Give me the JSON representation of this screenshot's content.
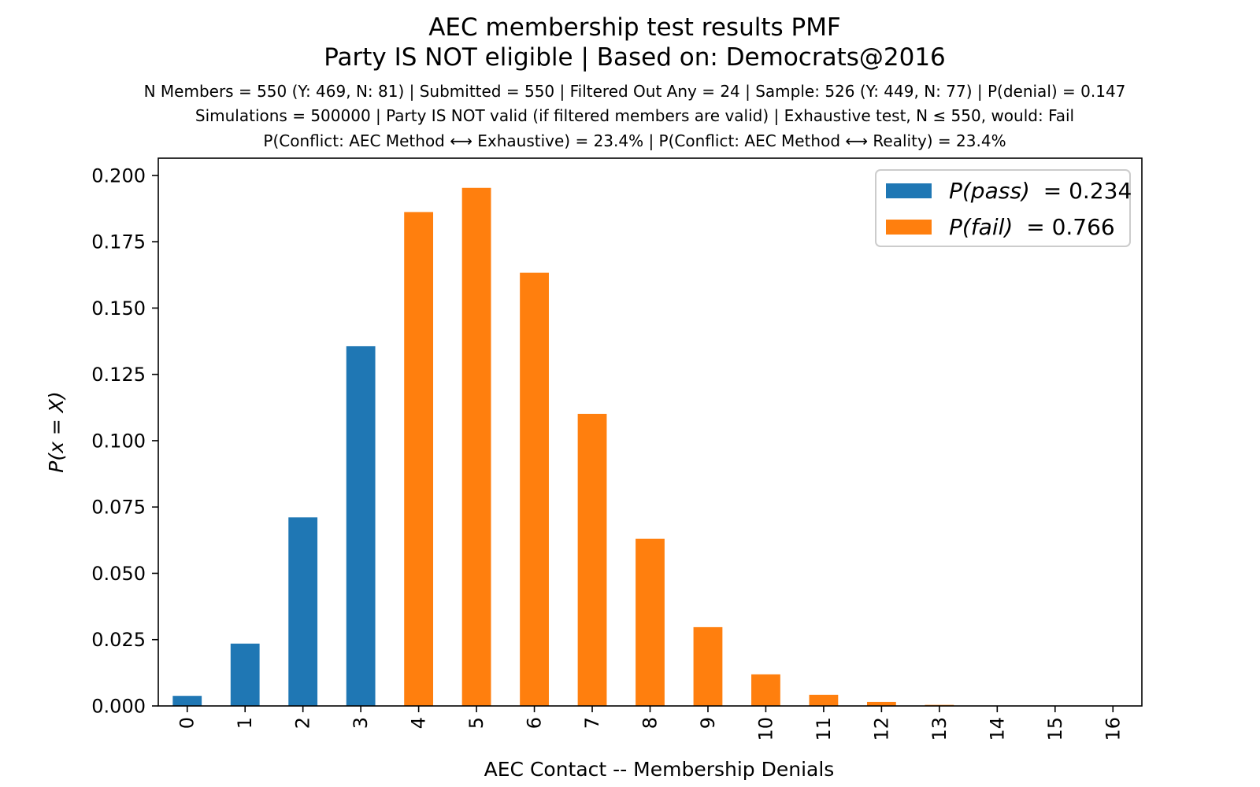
{
  "chart_data": {
    "type": "bar",
    "title": "AEC membership test results PMF",
    "subtitle": "Party IS NOT eligible | Based on: Democrats@2016",
    "info_lines": [
      "N Members = 550 (Y: 469, N: 81) | Submitted = 550 | Filtered Out Any = 24 | Sample: 526 (Y: 449, N: 77) | P(denial) = 0.147",
      "Simulations = 500000 | Party IS NOT valid (if filtered members are valid) | Exhaustive test, N ≤ 550, would: Fail",
      "P(Conflict: AEC Method ⟷ Exhaustive) = 23.4% | P(Conflict: AEC Method ⟷ Reality) = 23.4%"
    ],
    "xlabel": "AEC Contact -- Membership Denials",
    "ylabel": "P(x = X)",
    "ylim": [
      0,
      0.2
    ],
    "yticks": [
      "0.000",
      "0.025",
      "0.050",
      "0.075",
      "0.100",
      "0.125",
      "0.150",
      "0.175",
      "0.200"
    ],
    "categories": [
      "0",
      "1",
      "2",
      "3",
      "4",
      "5",
      "6",
      "7",
      "8",
      "9",
      "10",
      "11",
      "12",
      "13",
      "14",
      "15",
      "16"
    ],
    "series": [
      {
        "name": "P(pass) = 0.234",
        "label_prefix": "P(pass)",
        "label_value": "= 0.234",
        "color": "#1f77b4",
        "values": [
          0.0038,
          0.0235,
          0.0711,
          0.1356,
          0,
          0,
          0,
          0,
          0,
          0,
          0,
          0,
          0,
          0,
          0,
          0,
          0
        ]
      },
      {
        "name": "P(fail) = 0.766",
        "label_prefix": "P(fail)",
        "label_value": "= 0.766",
        "color": "#ff7f0e",
        "values": [
          0,
          0,
          0,
          0,
          0.1862,
          0.1953,
          0.1633,
          0.1101,
          0.063,
          0.0297,
          0.0119,
          0.0042,
          0.0015,
          0.0004,
          0.0001,
          3e-05,
          1e-05
        ]
      }
    ],
    "legend": {
      "placement": "top-right"
    },
    "grid": false
  }
}
